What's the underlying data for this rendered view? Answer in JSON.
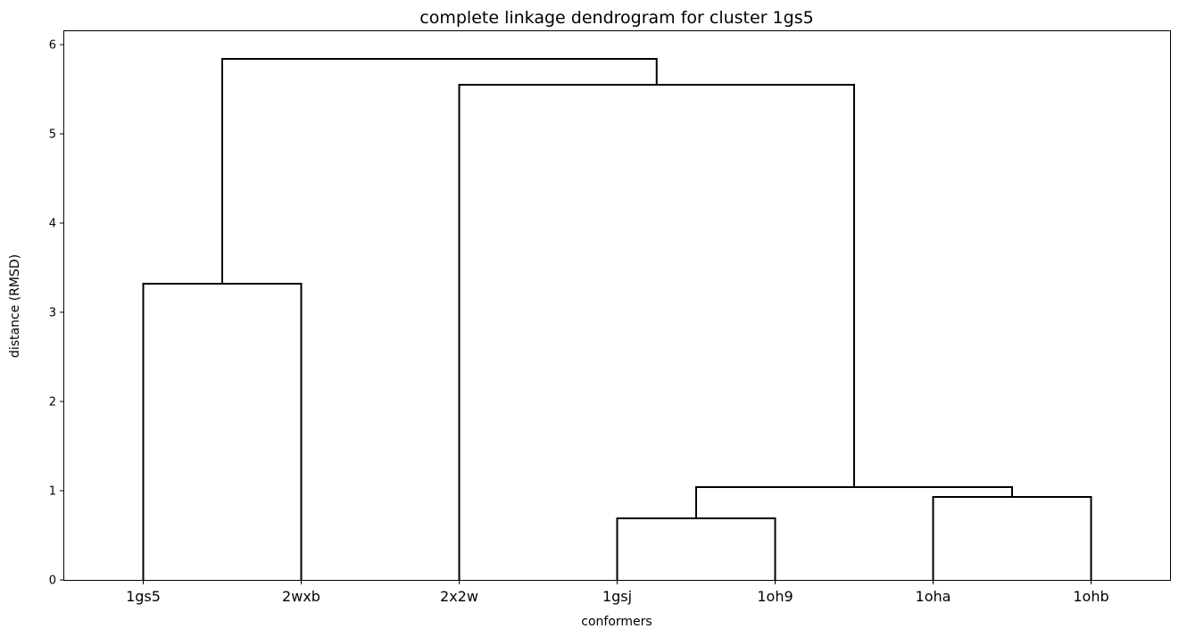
{
  "chart_data": {
    "type": "dendrogram",
    "title": "complete linkage dendrogram for cluster 1gs5",
    "xlabel": "conformers",
    "ylabel": "distance (RMSD)",
    "ylim": [
      0,
      6.15
    ],
    "yticks": [
      0,
      1,
      2,
      3,
      4,
      5,
      6
    ],
    "leaves": [
      "1gs5",
      "2wxb",
      "2x2w",
      "1gsj",
      "1oh9",
      "1oha",
      "1ohb"
    ],
    "merges": [
      {
        "left": "1gsj",
        "right": "1oh9",
        "height": 0.69
      },
      {
        "left": "1oha",
        "right": "1ohb",
        "height": 0.93
      },
      {
        "left": "1gsj+1oh9",
        "right": "1oha+1ohb",
        "height": 1.04
      },
      {
        "left": "1gs5",
        "right": "2wxb",
        "height": 3.32
      },
      {
        "left": "2x2w",
        "right": "1gsj+1oh9+1oha+1ohb",
        "height": 5.55
      },
      {
        "left": "1gs5+2wxb",
        "right": "2x2w+1gsj+1oh9+1oha+1ohb",
        "height": 5.84
      }
    ],
    "grid": false,
    "line_color": "#000000"
  }
}
